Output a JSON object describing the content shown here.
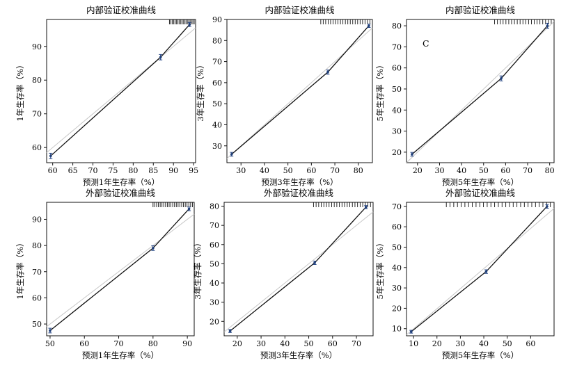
{
  "chart_data": [
    {
      "type": "line",
      "title": "内部验证校准曲线",
      "xlabel": "预测1年生存率（%）",
      "ylabel": "1年生存率（%）",
      "panel_letter": "",
      "xlim": [
        58.5,
        95.5
      ],
      "ylim": [
        55.5,
        98
      ],
      "xticks": [
        60,
        65,
        70,
        75,
        80,
        85,
        90,
        95
      ],
      "yticks": [
        60,
        70,
        80,
        90
      ],
      "series": [
        {
          "x": [
            59.5,
            86.8,
            94.0
          ],
          "y": [
            57.5,
            86.8,
            96.5
          ],
          "err": [
            0.8,
            0.8,
            0.6
          ]
        }
      ],
      "ideal": [
        [
          58.5,
          58.5
        ],
        [
          95.5,
          95.5
        ]
      ],
      "rug": {
        "from": 89,
        "to": 95.5,
        "n": 20
      }
    },
    {
      "type": "line",
      "title": "内部验证校准曲线",
      "xlabel": "预测3年生存率（%）",
      "ylabel": "3年生存率（%）",
      "panel_letter": "",
      "xlim": [
        24,
        86
      ],
      "ylim": [
        22,
        90
      ],
      "xticks": [
        30,
        40,
        50,
        60,
        70,
        80
      ],
      "yticks": [
        30,
        40,
        50,
        60,
        70,
        80,
        90
      ],
      "series": [
        {
          "x": [
            26,
            67,
            84.5
          ],
          "y": [
            26,
            65,
            87
          ],
          "err": [
            0.9,
            1.0,
            0.8
          ]
        }
      ],
      "ideal": [
        [
          24,
          24
        ],
        [
          86,
          86
        ]
      ],
      "rug": {
        "from": 64,
        "to": 86,
        "n": 22
      }
    },
    {
      "type": "line",
      "title": "内部验证校准曲线",
      "xlabel": "预测5年生存率（%）",
      "ylabel": "5年生存率（%）",
      "panel_letter": "C",
      "xlim": [
        15,
        82
      ],
      "ylim": [
        15,
        83
      ],
      "xticks": [
        20,
        30,
        40,
        50,
        60,
        70,
        80
      ],
      "yticks": [
        20,
        30,
        40,
        50,
        60,
        70,
        80
      ],
      "series": [
        {
          "x": [
            17.5,
            58,
            79
          ],
          "y": [
            19,
            55,
            80
          ],
          "err": [
            0.9,
            1.2,
            1.2
          ]
        }
      ],
      "ideal": [
        [
          15,
          15
        ],
        [
          82,
          82
        ]
      ],
      "rug": {
        "from": 55,
        "to": 82,
        "n": 22
      }
    },
    {
      "type": "line",
      "title": "外部验证校准曲线",
      "xlabel": "预测1年生存率（%）",
      "ylabel": "1年生存率（%）",
      "panel_letter": "",
      "xlim": [
        49,
        92
      ],
      "ylim": [
        45.5,
        96.5
      ],
      "xticks": [
        50,
        60,
        70,
        80,
        90
      ],
      "yticks": [
        50,
        60,
        70,
        80,
        90
      ],
      "series": [
        {
          "x": [
            50,
            80,
            90.5
          ],
          "y": [
            47.5,
            79,
            94
          ],
          "err": [
            0.9,
            0.9,
            0.7
          ]
        }
      ],
      "ideal": [
        [
          49,
          49
        ],
        [
          92,
          92
        ]
      ],
      "rug": {
        "from": 80,
        "to": 92,
        "n": 24
      }
    },
    {
      "type": "line",
      "title": "外部验证校准曲线",
      "xlabel": "预测3年生存率（%）",
      "ylabel": "3年生存率（%）",
      "panel_letter": "",
      "xlim": [
        14.5,
        77
      ],
      "ylim": [
        12.5,
        82
      ],
      "xticks": [
        20,
        30,
        40,
        50,
        60,
        70
      ],
      "yticks": [
        20,
        30,
        40,
        50,
        60,
        70,
        80
      ],
      "series": [
        {
          "x": [
            17,
            52.5,
            74
          ],
          "y": [
            15,
            50.5,
            79.5
          ],
          "err": [
            0.8,
            0.9,
            0.8
          ]
        }
      ],
      "ideal": [
        [
          14.5,
          14.5
        ],
        [
          77,
          77
        ]
      ],
      "rug": {
        "from": 52,
        "to": 77,
        "n": 24
      }
    },
    {
      "type": "line",
      "title": "外部验证校准曲线",
      "xlabel": "预测5年生存率（%）",
      "ylabel": "5年生存率（%）",
      "panel_letter": "",
      "xlim": [
        7,
        70
      ],
      "ylim": [
        6.5,
        72
      ],
      "xticks": [
        10,
        20,
        30,
        40,
        50,
        60
      ],
      "yticks": [
        10,
        20,
        30,
        40,
        50,
        60,
        70
      ],
      "series": [
        {
          "x": [
            9,
            41,
            67
          ],
          "y": [
            8.5,
            38,
            70
          ],
          "err": [
            0.7,
            0.9,
            0.9
          ]
        }
      ],
      "ideal": [
        [
          7,
          7
        ],
        [
          70,
          69
        ]
      ],
      "rug": {
        "from": 24,
        "to": 70,
        "n": 30
      }
    }
  ]
}
